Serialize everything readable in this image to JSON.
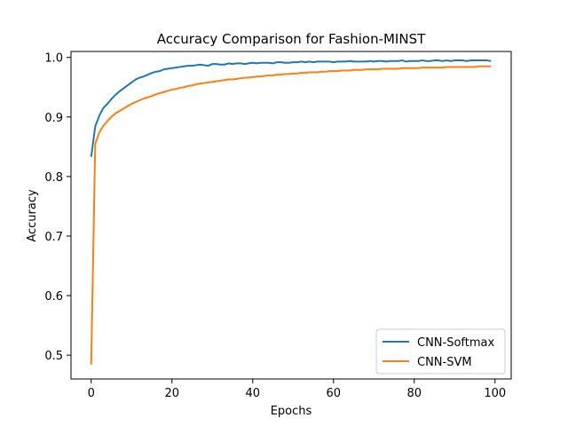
{
  "chart_data": {
    "type": "line",
    "title": "Accuracy Comparison for Fashion-MINST",
    "xlabel": "Epochs",
    "ylabel": "Accuracy",
    "xlim": [
      -5,
      104
    ],
    "ylim": [
      0.46,
      1.01
    ],
    "xticks": [
      0,
      20,
      40,
      60,
      80,
      100
    ],
    "xtick_labels": [
      "0",
      "20",
      "40",
      "60",
      "80",
      "100"
    ],
    "yticks": [
      0.5,
      0.6,
      0.7,
      0.8,
      0.9,
      1.0
    ],
    "ytick_labels": [
      "0.5",
      "0.6",
      "0.7",
      "0.8",
      "0.9",
      "1.0"
    ],
    "grid": false,
    "legend_position": "bottom-right",
    "x": [
      0,
      1,
      2,
      3,
      4,
      5,
      6,
      7,
      8,
      9,
      10,
      11,
      12,
      13,
      14,
      15,
      16,
      17,
      18,
      19,
      20,
      21,
      22,
      23,
      24,
      25,
      26,
      27,
      28,
      29,
      30,
      31,
      32,
      33,
      34,
      35,
      36,
      37,
      38,
      39,
      40,
      41,
      42,
      43,
      44,
      45,
      46,
      47,
      48,
      49,
      50,
      51,
      52,
      53,
      54,
      55,
      56,
      57,
      58,
      59,
      60,
      61,
      62,
      63,
      64,
      65,
      66,
      67,
      68,
      69,
      70,
      71,
      72,
      73,
      74,
      75,
      76,
      77,
      78,
      79,
      80,
      81,
      82,
      83,
      84,
      85,
      86,
      87,
      88,
      89,
      90,
      91,
      92,
      93,
      94,
      95,
      96,
      97,
      98,
      99
    ],
    "series": [
      {
        "name": "CNN-Softmax",
        "color": "#1f77b4",
        "values": [
          0.833,
          0.884,
          0.902,
          0.915,
          0.922,
          0.93,
          0.937,
          0.943,
          0.948,
          0.953,
          0.958,
          0.963,
          0.966,
          0.968,
          0.971,
          0.974,
          0.976,
          0.977,
          0.98,
          0.981,
          0.982,
          0.983,
          0.984,
          0.985,
          0.986,
          0.986,
          0.987,
          0.988,
          0.987,
          0.986,
          0.989,
          0.989,
          0.988,
          0.988,
          0.99,
          0.989,
          0.99,
          0.99,
          0.989,
          0.99,
          0.991,
          0.99,
          0.991,
          0.991,
          0.991,
          0.99,
          0.992,
          0.992,
          0.991,
          0.991,
          0.992,
          0.992,
          0.993,
          0.992,
          0.993,
          0.992,
          0.993,
          0.993,
          0.993,
          0.993,
          0.992,
          0.993,
          0.993,
          0.993,
          0.994,
          0.993,
          0.993,
          0.993,
          0.993,
          0.994,
          0.993,
          0.994,
          0.994,
          0.993,
          0.994,
          0.994,
          0.994,
          0.995,
          0.993,
          0.994,
          0.994,
          0.994,
          0.995,
          0.994,
          0.994,
          0.995,
          0.995,
          0.994,
          0.995,
          0.994,
          0.995,
          0.995,
          0.995,
          0.994,
          0.995,
          0.995,
          0.995,
          0.995,
          0.995,
          0.994
        ]
      },
      {
        "name": "CNN-SVM",
        "color": "#ff7f0e",
        "values": [
          0.484,
          0.855,
          0.874,
          0.885,
          0.893,
          0.9,
          0.906,
          0.91,
          0.914,
          0.918,
          0.922,
          0.925,
          0.928,
          0.931,
          0.933,
          0.935,
          0.938,
          0.94,
          0.942,
          0.944,
          0.946,
          0.947,
          0.949,
          0.95,
          0.952,
          0.953,
          0.955,
          0.956,
          0.957,
          0.958,
          0.959,
          0.96,
          0.961,
          0.962,
          0.963,
          0.963,
          0.964,
          0.965,
          0.966,
          0.966,
          0.967,
          0.968,
          0.968,
          0.969,
          0.97,
          0.97,
          0.971,
          0.971,
          0.972,
          0.972,
          0.973,
          0.973,
          0.974,
          0.974,
          0.975,
          0.975,
          0.975,
          0.976,
          0.976,
          0.977,
          0.977,
          0.977,
          0.978,
          0.978,
          0.978,
          0.979,
          0.979,
          0.979,
          0.98,
          0.98,
          0.98,
          0.98,
          0.981,
          0.981,
          0.981,
          0.981,
          0.981,
          0.982,
          0.982,
          0.982,
          0.982,
          0.982,
          0.983,
          0.983,
          0.983,
          0.983,
          0.983,
          0.983,
          0.984,
          0.984,
          0.984,
          0.984,
          0.984,
          0.984,
          0.984,
          0.984,
          0.985,
          0.985,
          0.985,
          0.985
        ]
      }
    ]
  }
}
